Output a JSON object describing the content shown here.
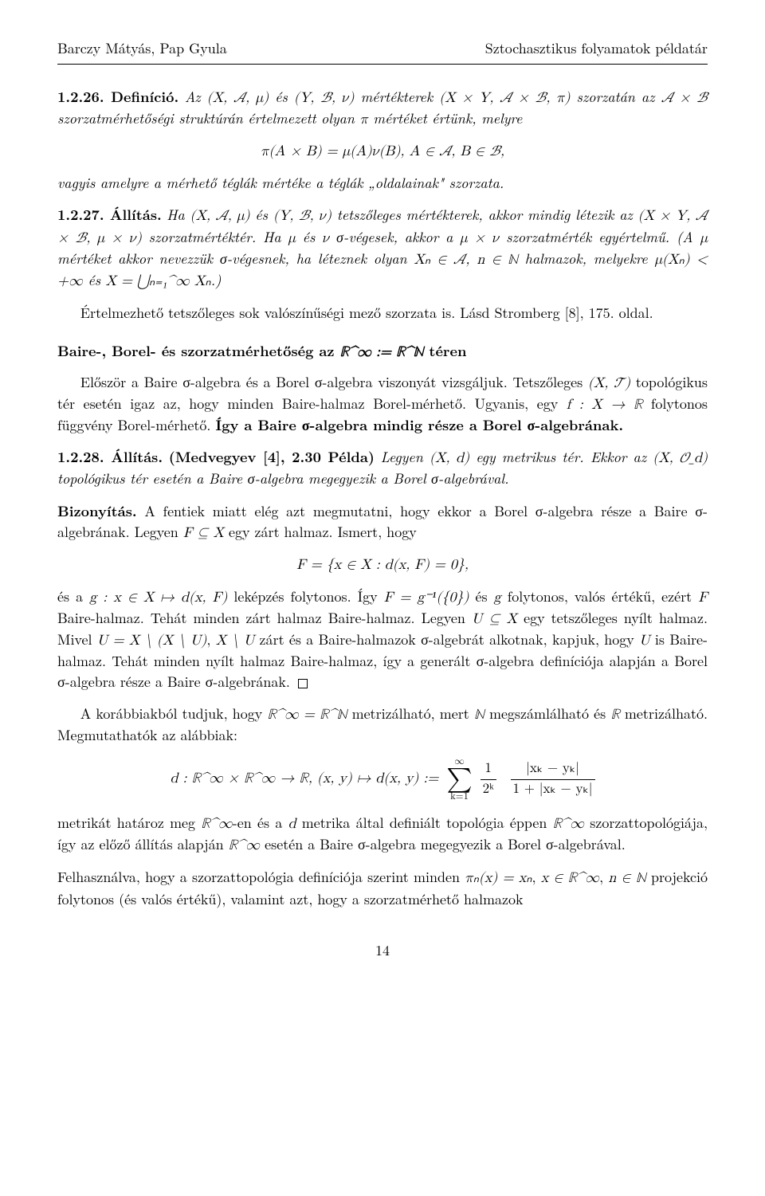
{
  "header": {
    "left": "Barczy Mátyás, Pap Gyula",
    "right": "Sztochasztikus folyamatok példatár"
  },
  "def126": {
    "num": "1.2.26. Definíció.",
    "text1a": "Az ",
    "m1": "(X, 𝒜, μ)",
    "text1b": " és ",
    "m2": "(Y, ℬ, ν)",
    "text1c": " mértékterek ",
    "m3": "(X × Y, 𝒜 × ℬ, π)",
    "text1d": " szorzatán az ",
    "m4": "𝒜 × ℬ",
    "text1e": " szorzatmérhetőségi struktúrán értelmezett olyan ",
    "m5": "π",
    "text1f": " mértéket értünk, melyre",
    "display": "π(A × B) = μ(A)ν(B),      A ∈ 𝒜,  B ∈ ℬ,",
    "text2": "vagyis amelyre a mérhető téglák mértéke a téglák „oldalainak\" szorzata."
  },
  "all127": {
    "num": "1.2.27. Állítás.",
    "t1": "Ha ",
    "m1": "(X, 𝒜, μ)",
    "t2": " és ",
    "m2": "(Y, ℬ, ν)",
    "t3": " tetszőleges mértékterek, akkor mindig létezik az ",
    "m3": "(X × Y, 𝒜 × ℬ, μ × ν)",
    "t4": " szorzatmértéktér. Ha ",
    "m4": "μ",
    "t5": " és ",
    "m5": "ν",
    "t6": " σ-végesek, akkor a ",
    "m6": "μ × ν",
    "t7": " szorzatmérték egyértelmű. (A ",
    "m7": "μ",
    "t8": " mértéket akkor nevezzük σ-végesnek, ha léteznek olyan ",
    "m8": "Xₙ ∈ 𝒜",
    "t9": ", ",
    "m9": "n ∈ ℕ",
    "t10": " halmazok, melyekre ",
    "m10": "μ(Xₙ) < +∞",
    "t11": " és ",
    "m11": "X = ⋃ₙ₌₁^∞ Xₙ",
    "t12": ".)"
  },
  "para_tetsz": {
    "t1": "Értelmezhető tetszőleges sok valószínűségi mező szorzata is. Lásd Stromberg [8], 175. oldal."
  },
  "subheading": {
    "t1": "Baire-, Borel- és szorzatmérhetőség az  ",
    "m1": "ℝ^∞ := ℝ^ℕ",
    "t2": "  téren"
  },
  "para_baire": {
    "t1": "Először a Baire σ-algebra és a Borel σ-algebra viszonyát vizsgáljuk. Tetszőleges ",
    "m1": "(X, 𝒯)",
    "t2": " topológikus tér esetén igaz az, hogy minden Baire-halmaz Borel-mérhető. Ugyanis, egy ",
    "m2": "f : X → ℝ",
    "t3": " folytonos függvény Borel-mérhető. ",
    "t4": "Így a Baire σ-algebra mindig része a Borel σ-algebrának."
  },
  "all128": {
    "num": "1.2.28. Állítás.",
    "ref": "(Medvegyev [4], 2.30 Példa)",
    "t1": " Legyen ",
    "m1": "(X, d)",
    "t2": " egy metrikus tér. Ekkor az ",
    "m2": "(X, 𝒪_d)",
    "t3": " topológikus tér esetén a Baire σ-algebra megegyezik a Borel σ-algebrával."
  },
  "proof": {
    "label": "Bizonyítás.",
    "t1": " A fentiek miatt elég azt megmutatni, hogy ekkor a Borel σ-algebra része a Baire σ-algebrának. Legyen ",
    "m1": "F ⊆ X",
    "t2": " egy zárt halmaz. Ismert, hogy",
    "display": "F = {x ∈ X : d(x, F) = 0},",
    "t3": "és a ",
    "m2": "g : x ∈ X ↦ d(x, F)",
    "t4": " leképzés folytonos. Így ",
    "m3": "F = g⁻¹({0})",
    "t5": " és ",
    "m4": "g",
    "t6": " folytonos, valós értékű, ezért ",
    "m5": "F",
    "t7": " Baire-halmaz. Tehát minden zárt halmaz Baire-halmaz. Legyen ",
    "m6": "U ⊆ X",
    "t8": " egy tetszőleges nyílt halmaz. Mivel ",
    "m7": "U = X \\ (X \\ U)",
    "t9": ", ",
    "m8": "X \\ U",
    "t10": " zárt és a Baire-halmazok σ-algebrát alkotnak, kapjuk, hogy ",
    "m9": "U",
    "t11": " is Baire-halmaz. Tehát minden nyílt halmaz Baire-halmaz, így a generált σ-algebra definíciója alapján a Borel σ-algebra része a Baire σ-algebrának."
  },
  "para_metr": {
    "t1": "A korábbiakból tudjuk, hogy ",
    "m1": "ℝ^∞ = ℝ^ℕ",
    "t2": " metrizálható, mert ",
    "m2": "ℕ",
    "t3": " megszámlálható és ",
    "m3": "ℝ",
    "t4": " metrizálható. Megmutathatók az alábbiak:"
  },
  "metric_display": {
    "lhs": "d : ℝ^∞ × ℝ^∞ → ℝ,    (x, y) ↦ d(x, y) :=",
    "sum_lo": "k=1",
    "sum_hi": "∞",
    "f1n": "1",
    "f1d": "2ᵏ",
    "f2n": "|xₖ − yₖ|",
    "f2d": "1 + |xₖ − yₖ|"
  },
  "para_metrika": {
    "t1": "metrikát határoz meg ",
    "m1": "ℝ^∞",
    "t2": "-en és a ",
    "m2": "d",
    "t3": " metrika által definiált topológia éppen ",
    "m3": "ℝ^∞",
    "t4": " szorzattopológiája, így az előző állítás alapján ",
    "m4": "ℝ^∞",
    "t5": " esetén a Baire σ-algebra megegyezik a Borel σ-algebrával."
  },
  "para_last": {
    "t1": "Felhasználva, hogy a szorzattopológia definíciója szerint minden ",
    "m1": "πₙ(x) = xₙ",
    "t2": ", ",
    "m2": "x ∈ ℝ^∞",
    "t3": ", ",
    "m3": "n ∈ ℕ",
    "t4": " projekció folytonos (és valós értékű), valamint azt, hogy a szorzatmérhető halmazok"
  },
  "pagenum": "14"
}
